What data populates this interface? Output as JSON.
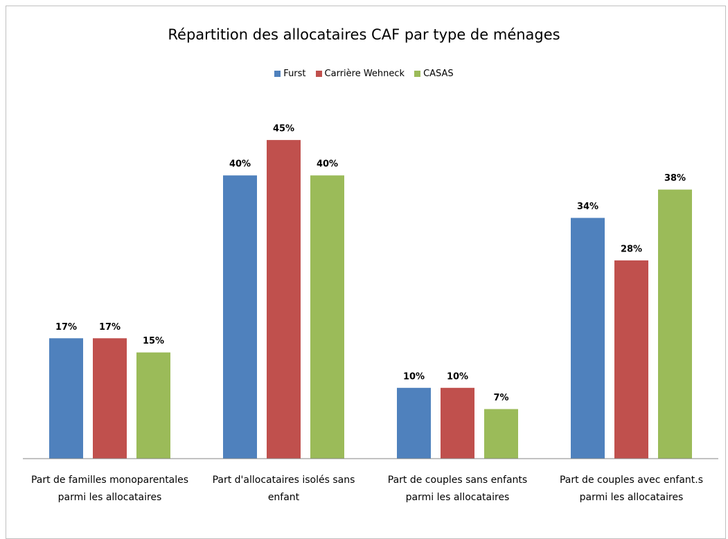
{
  "chart_data": {
    "type": "bar",
    "title": "Répartition des allocataires CAF par type de ménages",
    "categories": [
      "Part de familles monoparentales parmi les allocataires",
      "Part d'allocataires isolés sans enfant",
      "Part de couples sans enfants parmi les allocataires",
      "Part de couples avec enfant.s parmi les allocataires"
    ],
    "series": [
      {
        "name": "Furst",
        "color": "#4f81bd",
        "values": [
          17,
          40,
          10,
          34
        ],
        "value_labels": [
          "17%",
          "40%",
          "10%",
          "34%"
        ]
      },
      {
        "name": "Carrière Wehneck",
        "color": "#c0504d",
        "values": [
          17,
          45,
          10,
          28
        ],
        "value_labels": [
          "17%",
          "45%",
          "10%",
          "28%"
        ]
      },
      {
        "name": "CASAS",
        "color": "#9bbb59",
        "values": [
          15,
          40,
          7,
          38
        ],
        "value_labels": [
          "15%",
          "40%",
          "7%",
          "38%"
        ]
      }
    ],
    "legend": "top"
  }
}
